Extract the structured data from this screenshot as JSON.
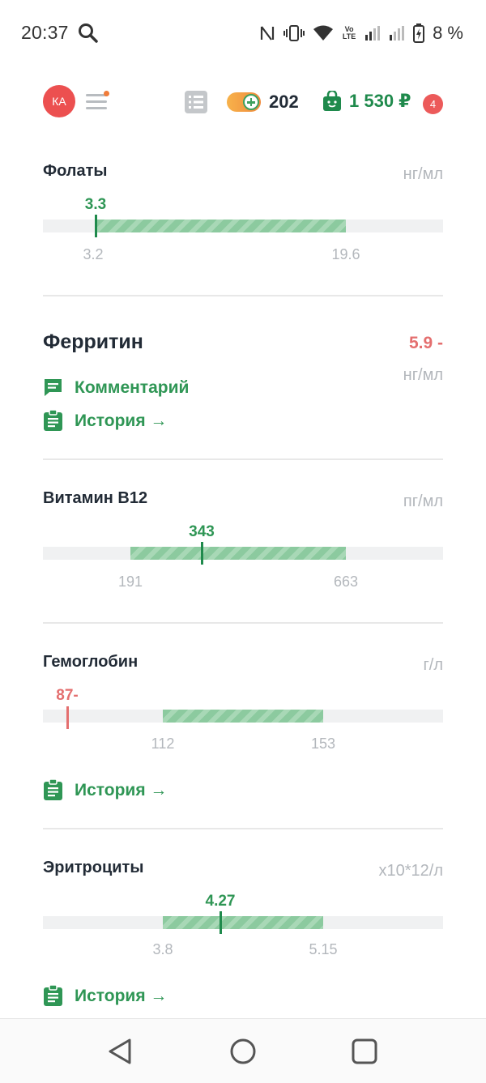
{
  "status_bar": {
    "time": "20:37",
    "battery": "8 %",
    "volte": "Vo LTE"
  },
  "header": {
    "avatar_initials": "КА",
    "coins": "202",
    "wallet": "1 530 ₽",
    "notifications_count": "4"
  },
  "folate": {
    "title": "Фолаты",
    "unit": "нг/мл",
    "value": "3.3",
    "ref_low": "3.2",
    "ref_high": "19.6"
  },
  "ferritin": {
    "title": "Ферритин",
    "value": "5.9 -",
    "unit": "нг/мл",
    "comment_link": "Комментарий",
    "history_link": "История →"
  },
  "b12": {
    "title": "Витамин В12",
    "unit": "пг/мл",
    "value": "343",
    "ref_low": "191",
    "ref_high": "663"
  },
  "hemoglobin": {
    "title": "Гемоглобин",
    "unit": "г/л",
    "value": "87-",
    "ref_low": "112",
    "ref_high": "153",
    "history_link": "История →"
  },
  "rbc": {
    "title": "Эритроциты",
    "unit": "x10*12/л",
    "value": "4.27",
    "ref_low": "3.8",
    "ref_high": "5.15",
    "history_link": "История →"
  },
  "colors": {
    "accent_green": "#2f9655",
    "alert_red": "#e46f6f",
    "avatar_red": "#ec5050"
  }
}
